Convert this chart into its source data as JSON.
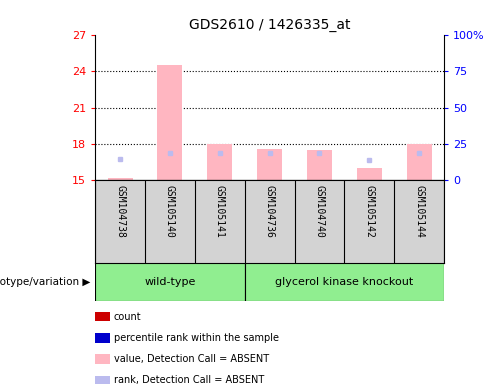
{
  "title": "GDS2610 / 1426335_at",
  "samples": [
    "GSM104738",
    "GSM105140",
    "GSM105141",
    "GSM104736",
    "GSM104740",
    "GSM105142",
    "GSM105144"
  ],
  "n_wildtype": 3,
  "n_knockout": 4,
  "ylim_left": [
    15,
    27
  ],
  "yticks_left": [
    15,
    18,
    21,
    24,
    27
  ],
  "ylim_right": [
    0,
    100
  ],
  "yticks_right": [
    0,
    25,
    50,
    75,
    100
  ],
  "pink_bar_bottom": 15,
  "pink_bars": [
    15.2,
    24.5,
    18.0,
    17.6,
    17.5,
    16.0,
    18.0
  ],
  "blue_dot_y": [
    16.8,
    17.3,
    17.3,
    17.3,
    17.3,
    16.7,
    17.3
  ],
  "bar_color_pink": "#FFB6C1",
  "bar_color_lightblue": "#BBBBEE",
  "x_bg_color": "#D3D3D3",
  "plot_bg": "#FFFFFF",
  "group_bg": "#90EE90",
  "legend_items": [
    {
      "color": "#CC0000",
      "label": "count"
    },
    {
      "color": "#0000CC",
      "label": "percentile rank within the sample"
    },
    {
      "color": "#FFB6C1",
      "label": "value, Detection Call = ABSENT"
    },
    {
      "color": "#BBBBEE",
      "label": "rank, Detection Call = ABSENT"
    }
  ],
  "genotype_label": "genotype/variation",
  "wt_label": "wild-type",
  "gk_label": "glycerol kinase knockout"
}
